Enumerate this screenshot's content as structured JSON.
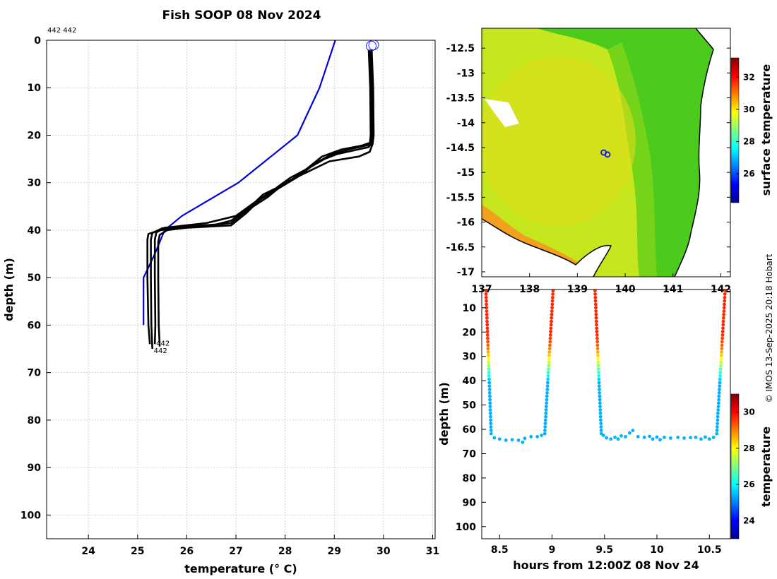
{
  "figure": {
    "title": "Fish SOOP 08 Nov 2024",
    "corner_label": "442 442",
    "credit": "© IMOS 13-Sep-2025 20:18 Hobart"
  },
  "chart_data": [
    {
      "id": "profile",
      "type": "line",
      "xlabel": "temperature (° C)",
      "ylabel": "depth (m)",
      "xlim": [
        23.15,
        31.05
      ],
      "ylim": [
        0,
        105
      ],
      "y_reversed": true,
      "grid": true,
      "xticks": [
        24,
        25,
        26,
        27,
        28,
        29,
        30,
        31
      ],
      "yticks": [
        0,
        10,
        20,
        30,
        40,
        50,
        60,
        70,
        80,
        90,
        100
      ],
      "end_labels": [
        "442",
        "442"
      ],
      "series": [
        {
          "color": "#0000dd",
          "x": [
            29.02,
            28.7,
            28.25,
            27.05,
            25.9,
            25.55,
            25.35,
            25.12,
            25.12
          ],
          "y": [
            0,
            10,
            20,
            30,
            37,
            40,
            45,
            50,
            60
          ]
        },
        {
          "color": "#000000",
          "x": [
            29.74,
            29.78,
            29.79,
            29.77,
            29.7,
            29.05,
            28.8,
            28.5,
            28.1,
            27.7,
            27.4,
            27.0,
            26.4,
            25.55,
            25.38,
            25.35,
            25.35,
            25.36,
            25.35
          ],
          "y": [
            2,
            10,
            20,
            21.5,
            22.5,
            24,
            25,
            26.8,
            29,
            32,
            34,
            37,
            38.5,
            39.5,
            40.5,
            42,
            50,
            60,
            64
          ]
        },
        {
          "color": "#000000",
          "x": [
            29.72,
            29.75,
            29.76,
            29.75,
            29.55,
            29.15,
            28.75,
            28.45,
            28.05,
            27.55,
            27.3,
            26.9,
            26.6,
            25.5,
            25.3,
            25.27,
            25.27,
            25.28,
            25.3
          ],
          "y": [
            2,
            10,
            20,
            21.5,
            22.2,
            23,
            24.5,
            27,
            30,
            32.5,
            35,
            38,
            38.8,
            39.6,
            40.6,
            42,
            50,
            60,
            65
          ]
        },
        {
          "color": "#000000",
          "x": [
            29.76,
            29.79,
            29.8,
            29.78,
            29.72,
            29.5,
            28.9,
            28.5,
            28.0,
            27.65,
            27.2,
            26.9,
            26.2,
            25.6,
            25.45,
            25.42,
            25.42,
            25.43,
            25.45
          ],
          "y": [
            2,
            10,
            20,
            21.8,
            23.5,
            24.5,
            25.5,
            27.5,
            30,
            33,
            36,
            38.5,
            39.2,
            40,
            41,
            42.5,
            50,
            60,
            64.5
          ]
        },
        {
          "color": "#000000",
          "x": [
            29.7,
            29.73,
            29.74,
            29.72,
            29.3,
            28.95,
            28.6,
            28.3,
            27.9,
            27.5,
            27.2,
            26.9,
            26.0,
            25.45,
            25.22,
            25.2,
            25.2,
            25.22,
            25.25
          ],
          "y": [
            2,
            10,
            20,
            22,
            23,
            24,
            26,
            28.5,
            31,
            33.5,
            36.5,
            39,
            39.5,
            40,
            40.8,
            42,
            50,
            60,
            64
          ]
        }
      ],
      "surface_markers": [
        {
          "x": 29.75,
          "y": 1.2
        },
        {
          "x": 29.8,
          "y": 1.0
        }
      ]
    },
    {
      "id": "map",
      "type": "heatmap",
      "colorbar_label": "surface temperature",
      "xlim": [
        137.0,
        142.2
      ],
      "ylim": [
        -17.1,
        -12.1
      ],
      "xticks": [
        137,
        138,
        139,
        140,
        141,
        142
      ],
      "yticks": [
        -12.5,
        -13,
        -13.5,
        -14,
        -14.5,
        -15,
        -15.5,
        -16,
        -16.5,
        -17
      ],
      "clim": [
        24.2,
        33.2
      ],
      "cticks": [
        26,
        28,
        30,
        32
      ],
      "stations": [
        {
          "lon": 139.55,
          "lat": -14.6
        },
        {
          "lon": 139.63,
          "lat": -14.64
        }
      ]
    },
    {
      "id": "timeseries",
      "type": "scatter",
      "xlabel": "hours from 12:00Z 08 Nov 24",
      "ylabel": "depth (m)",
      "colorbar_label": "temperature",
      "xlim": [
        8.33,
        10.7
      ],
      "ylim": [
        2.5,
        105
      ],
      "y_reversed": true,
      "xticks": [
        8.5,
        9,
        9.5,
        10,
        10.5
      ],
      "yticks": [
        10,
        20,
        30,
        40,
        50,
        60,
        70,
        80,
        90,
        100
      ],
      "clim": [
        23,
        31
      ],
      "cticks": [
        24,
        26,
        28,
        30
      ],
      "casts": [
        {
          "x0": 8.37,
          "x1": 8.42,
          "type": "down"
        },
        {
          "x0": 8.93,
          "x1": 9.01,
          "type": "up"
        },
        {
          "x0": 9.41,
          "x1": 9.47,
          "type": "down"
        },
        {
          "x0": 10.57,
          "x1": 10.65,
          "type": "up"
        }
      ],
      "bottom_points": [
        {
          "x": 8.45,
          "y": 63.5
        },
        {
          "x": 8.5,
          "y": 64
        },
        {
          "x": 8.56,
          "y": 64.5
        },
        {
          "x": 8.62,
          "y": 64.3
        },
        {
          "x": 8.68,
          "y": 64.5
        },
        {
          "x": 8.72,
          "y": 65.3
        },
        {
          "x": 8.74,
          "y": 63.7
        },
        {
          "x": 8.8,
          "y": 63
        },
        {
          "x": 8.86,
          "y": 63
        },
        {
          "x": 8.9,
          "y": 62.5
        },
        {
          "x": 9.49,
          "y": 62.5
        },
        {
          "x": 9.52,
          "y": 63.5
        },
        {
          "x": 9.56,
          "y": 64
        },
        {
          "x": 9.6,
          "y": 63.3
        },
        {
          "x": 9.63,
          "y": 64
        },
        {
          "x": 9.66,
          "y": 62.7
        },
        {
          "x": 9.7,
          "y": 63
        },
        {
          "x": 9.74,
          "y": 61.5
        },
        {
          "x": 9.77,
          "y": 60.5
        },
        {
          "x": 9.82,
          "y": 63
        },
        {
          "x": 9.88,
          "y": 63.3
        },
        {
          "x": 9.93,
          "y": 62.9
        },
        {
          "x": 9.96,
          "y": 64
        },
        {
          "x": 10.0,
          "y": 63.2
        },
        {
          "x": 10.03,
          "y": 64.3
        },
        {
          "x": 10.07,
          "y": 63.3
        },
        {
          "x": 10.13,
          "y": 63.6
        },
        {
          "x": 10.2,
          "y": 63.3
        },
        {
          "x": 10.26,
          "y": 63.6
        },
        {
          "x": 10.32,
          "y": 63.4
        },
        {
          "x": 10.37,
          "y": 63.3
        },
        {
          "x": 10.42,
          "y": 64
        },
        {
          "x": 10.46,
          "y": 63.2
        },
        {
          "x": 10.5,
          "y": 64
        },
        {
          "x": 10.54,
          "y": 63.3
        }
      ]
    }
  ]
}
